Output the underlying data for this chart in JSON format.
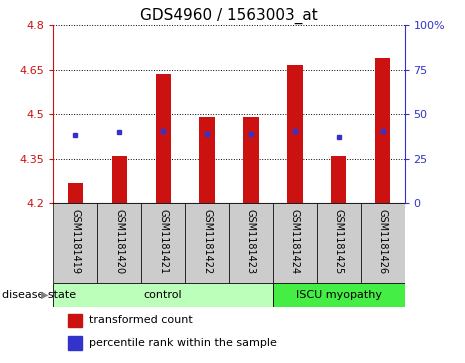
{
  "title": "GDS4960 / 1563003_at",
  "samples": [
    "GSM1181419",
    "GSM1181420",
    "GSM1181421",
    "GSM1181422",
    "GSM1181423",
    "GSM1181424",
    "GSM1181425",
    "GSM1181426"
  ],
  "bar_values": [
    4.27,
    4.36,
    4.635,
    4.49,
    4.49,
    4.665,
    4.36,
    4.69
  ],
  "dot_values": [
    4.43,
    4.44,
    4.445,
    4.435,
    4.435,
    4.445,
    4.425,
    4.445
  ],
  "y_min": 4.2,
  "y_max": 4.8,
  "y_ticks_left": [
    4.2,
    4.35,
    4.5,
    4.65,
    4.8
  ],
  "y_ticks_right": [
    0,
    25,
    50,
    75,
    100
  ],
  "bar_color": "#cc1111",
  "dot_color": "#3333cc",
  "bar_bottom": 4.2,
  "control_indices": [
    0,
    1,
    2,
    3,
    4
  ],
  "iscu_indices": [
    5,
    6,
    7
  ],
  "control_label": "control",
  "iscu_label": "ISCU myopathy",
  "disease_state_label": "disease state",
  "legend_red": "transformed count",
  "legend_blue": "percentile rank within the sample",
  "bar_color_hex": "#cc1111",
  "dot_color_hex": "#3333cc",
  "tick_color_left": "#cc1111",
  "tick_color_right": "#3333cc",
  "plot_bg": "#ffffff",
  "label_area_bg": "#cccccc",
  "control_bg": "#bbffbb",
  "iscu_bg": "#44ee44",
  "title_fontsize": 11,
  "tick_fontsize": 8,
  "sample_fontsize": 7,
  "legend_fontsize": 8,
  "bar_width": 0.35
}
